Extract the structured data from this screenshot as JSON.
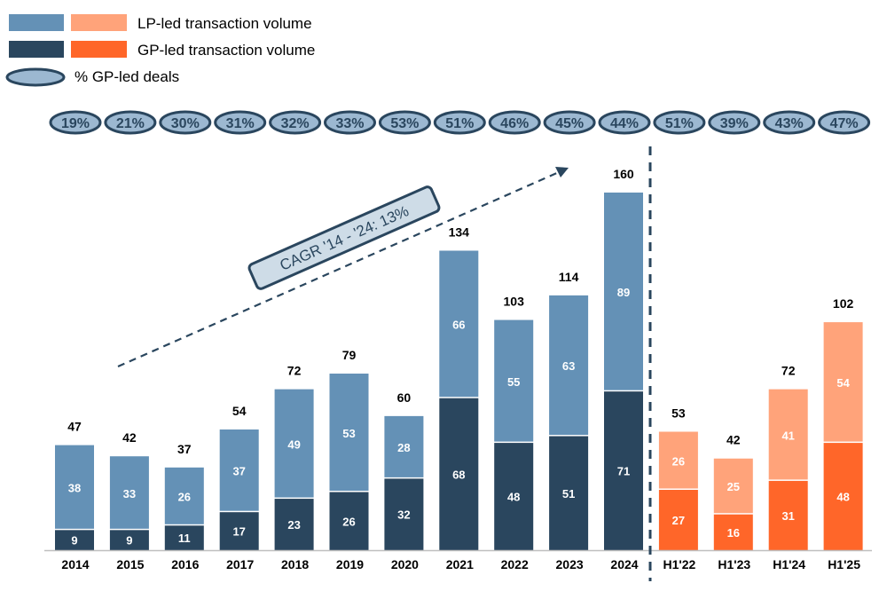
{
  "legend": {
    "lp_label": "LP-led transaction volume",
    "gp_label": "GP-led transaction volume",
    "pct_label": "% GP-led deals"
  },
  "colors": {
    "lp_annual": "#6491B6",
    "gp_annual": "#2A465E",
    "lp_h1": "#FFA37A",
    "gp_h1": "#FF6629",
    "oval_fill": "#9CB8D1",
    "oval_stroke": "#2A465E",
    "cagr_fill": "#CEDCE7"
  },
  "cagr_label": "CAGR '14 - '24: 13%",
  "chart_data": {
    "type": "bar",
    "stacked": true,
    "categories": [
      "2014",
      "2015",
      "2016",
      "2017",
      "2018",
      "2019",
      "2020",
      "2021",
      "2022",
      "2023",
      "2024",
      "H1'22",
      "H1'23",
      "H1'24",
      "H1'25"
    ],
    "series": [
      {
        "name": "GP-led transaction volume",
        "values": [
          9,
          9,
          11,
          17,
          23,
          26,
          32,
          68,
          48,
          51,
          71,
          27,
          16,
          31,
          48
        ]
      },
      {
        "name": "LP-led transaction volume",
        "values": [
          38,
          33,
          26,
          37,
          49,
          53,
          28,
          66,
          55,
          63,
          89,
          26,
          25,
          41,
          54
        ]
      }
    ],
    "totals": [
      47,
      42,
      37,
      54,
      72,
      79,
      60,
      134,
      103,
      114,
      160,
      53,
      42,
      72,
      102
    ],
    "gp_led_pct": [
      "19%",
      "21%",
      "30%",
      "31%",
      "32%",
      "33%",
      "53%",
      "51%",
      "46%",
      "45%",
      "44%",
      "51%",
      "39%",
      "43%",
      "47%"
    ],
    "h1_start_index": 11,
    "ylim": [
      0,
      160
    ],
    "grid": false,
    "legend_position": "top-left"
  }
}
